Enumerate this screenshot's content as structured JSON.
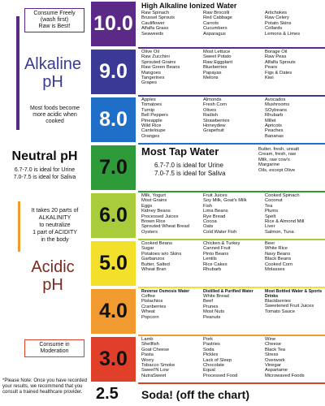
{
  "left": {
    "consume_freely": [
      "Consume Freely",
      "(wash first)",
      "Raw is Best!"
    ],
    "alkaline": [
      "Alkaline",
      "pH"
    ],
    "cooked_note": [
      "Most foods become",
      "more acidic when",
      "cooked"
    ],
    "neutral_title": "Neutral pH",
    "neutral_notes": [
      "6.7-7.0 is ideal for Urine",
      "7.0-7.5 is ideal for Saliva"
    ],
    "ratio_note": [
      "It takes 20 parts of",
      "ALKALINITY",
      "to neutralize",
      "1 part of ACIDITY",
      "in the body"
    ],
    "acidic": [
      "Acidic",
      "pH"
    ],
    "moderation": [
      "Consume in",
      "Moderation"
    ],
    "footnote": "*Please Note: Once you have recorded your results, we recommend that you consult a trained healthcare provider."
  },
  "rows": [
    {
      "ph": "10.0",
      "color": "#5b2a86",
      "text_color": "#ffffff",
      "header": "High Alkaline Ionized Water",
      "columns": [
        {
          "items": [
            "Raw Spinach",
            "Brussel Sprouts",
            "Cauliflower",
            "Alfalfa Grass",
            "Seaweeds"
          ]
        },
        {
          "items": [
            "Raw Brocolli",
            "Red Cabbage",
            "Carrots",
            "Cucumbers",
            "Asparagus"
          ]
        },
        {
          "items": [
            "Artichokes",
            "Raw Celery",
            "Potato Skins",
            "Collards",
            "Lemons & Limes"
          ]
        }
      ]
    },
    {
      "ph": "9.0",
      "color": "#3a3a96",
      "text_color": "#ffffff",
      "columns": [
        {
          "items": [
            "Olive Oil",
            "Raw Zucchini",
            "Sprouted Grains",
            "Raw Green Beans",
            "Mangoes",
            "Tangerines",
            "Grapes"
          ]
        },
        {
          "items": [
            "Most Lettuce",
            "Sweet Potato",
            "Raw Eggplant",
            "Blueberries",
            "Papayas",
            "Melons"
          ]
        },
        {
          "items": [
            "Borage Oil",
            "Raw Peas",
            "Alfalfa Sprouts",
            "Pears",
            "Figs & Dates",
            "Kiwi"
          ]
        }
      ]
    },
    {
      "ph": "8.0",
      "color": "#1f6fc8",
      "text_color": "#ffffff",
      "columns": [
        {
          "items": [
            "Apples",
            "Tomatoes",
            "Turnip",
            "Bell Peppers",
            "Pineapple",
            "Wild Rice",
            "Canteloupe",
            "Oranges"
          ]
        },
        {
          "items": [
            "Almonds",
            "Fresh Corn",
            "Olives",
            "Radish",
            "Strawberries",
            "Honeydew",
            "Grapefruit"
          ]
        },
        {
          "items": [
            "Avocados",
            "Mushrooms",
            "SOybeans",
            "Rhubarb",
            "Millet",
            "Apricots",
            "Peaches",
            "Bananas"
          ]
        }
      ]
    },
    {
      "ph": "7.0",
      "color": "#2f9a3a",
      "text_color": "#111111",
      "header": "Most Tap Water",
      "notes": [
        "6.7-7.0 is ideal for Urine",
        "7.0-7.5 is ideal for Saliva"
      ],
      "columns": [
        {
          "items": [
            "Butter, fresh, unsalt",
            "Cream, fresh, raw",
            "Milk, raw cow's",
            "Margarine",
            "Oils, except Olive"
          ]
        }
      ]
    },
    {
      "ph": "6.0",
      "color": "#a8cc3c",
      "text_color": "#111111",
      "columns": [
        {
          "items": [
            "Milk, Yogurt",
            "Most Grains",
            "Eggs",
            "Kidney Beans",
            "Processed Juices",
            "Brown Rice",
            "Sprouted Wheat Bread",
            "Oysters"
          ]
        },
        {
          "items": [
            "Fruit Juices",
            "Soy Milk, Goat's Milk",
            "Fish",
            "Lima Beans",
            "Rye Bread",
            "Cocoa",
            "Oats",
            "Cold Water Fish"
          ]
        },
        {
          "items": [
            "Cooked Spinach",
            "Coconut",
            "Tea",
            "Plums",
            "Spelt",
            "Rice & Almond Mill",
            "Liver",
            "Salmon, Tuna"
          ]
        }
      ]
    },
    {
      "ph": "5.0",
      "color": "#f2e02a",
      "text_color": "#111111",
      "columns": [
        {
          "items": [
            "Cooked Beans",
            "Sugar",
            "Potatoes w/o Skins",
            "Garbanzos",
            "Butter, Salted",
            "Wheat Bran"
          ]
        },
        {
          "items": [
            "Chicken & Turkey",
            "Canned Fruit",
            "Pinto Beans",
            "Lentils",
            "Rice Cakes",
            "Rhubarb"
          ]
        },
        {
          "items": [
            "Beer",
            "White Rice",
            "Navy Beans",
            "Black Beans",
            "Cooked Corn",
            "Molasses"
          ]
        }
      ]
    },
    {
      "ph": "4.0",
      "color": "#f09a30",
      "text_color": "#111111",
      "columns": [
        {
          "title": "Reverse Osmosis Water",
          "items": [
            "Coffee",
            "Pistachios",
            "Cranberries",
            "Wheat",
            "Popcorn"
          ]
        },
        {
          "title": "Distilled & Purified Water",
          "items": [
            "White Bread",
            "Beef",
            "Prunes",
            "Most Nuts",
            "Peanuts"
          ]
        },
        {
          "title": "Most Bottled Water & Sports Drinks",
          "items": [
            "Blackberries",
            "Sweetened Fruit Juices",
            "Tomato Sauce"
          ]
        }
      ]
    },
    {
      "ph": "3.0",
      "color": "#e0402a",
      "text_color": "#111111",
      "columns": [
        {
          "items": [
            "Lamb",
            "Shellfish",
            "Goat Cheese",
            "Pasta",
            "Worry",
            "Tobacco Smoke",
            "Sweet'N Low",
            "NutraSweet"
          ]
        },
        {
          "items": [
            "Pork",
            "Pastries",
            "Soda",
            "Pickles",
            "Lack of Sleep",
            "Chocolate",
            "Equal",
            "Processed Food"
          ]
        },
        {
          "items": [
            "Wine",
            "Cheese",
            "Black Tea",
            "Stress",
            "Overwork",
            "Vinegar",
            "Aspartame",
            "Microwaved Foods"
          ]
        }
      ]
    }
  ],
  "bottom": {
    "ph": "2.5",
    "label": "Soda! (off the chart)"
  }
}
